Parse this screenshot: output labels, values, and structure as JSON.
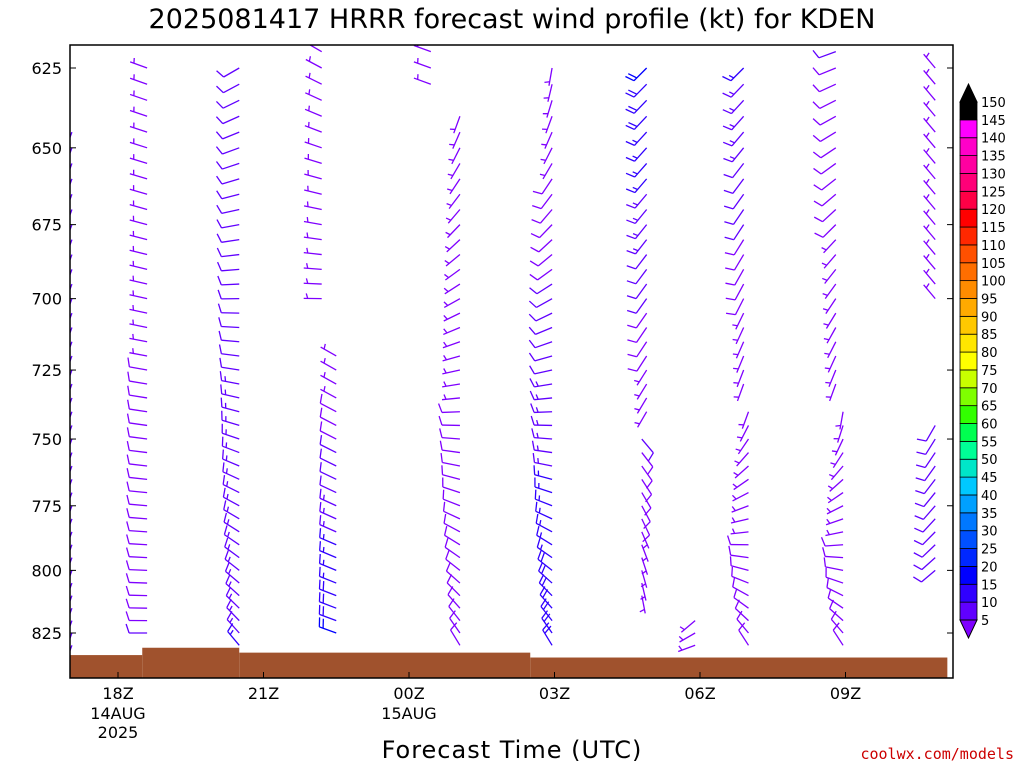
{
  "chart_data": {
    "type": "wind-barb-profile",
    "title": "2025081417 HRRR forecast wind profile (kt) for KDEN",
    "xlabel": "Forecast Time (UTC)",
    "ylabel": "",
    "credit": "coolwx.com/models",
    "y_scale": "log",
    "ylim": [
      615,
      840
    ],
    "y_ticks": [
      625,
      650,
      675,
      700,
      725,
      750,
      775,
      800,
      825
    ],
    "y_tick_labels": [
      "625",
      "650",
      "675",
      "700",
      "725",
      "750",
      "775",
      "800",
      "825"
    ],
    "xlim_hours": [
      -1,
      17.1
    ],
    "x_ticks": [
      {
        "hour": 0,
        "label": "18Z",
        "sub1": "14AUG",
        "sub2": "2025"
      },
      {
        "hour": 3,
        "label": "21Z",
        "sub1": "",
        "sub2": ""
      },
      {
        "hour": 6,
        "label": "00Z",
        "sub1": "15AUG",
        "sub2": ""
      },
      {
        "hour": 9,
        "label": "03Z",
        "sub1": "",
        "sub2": ""
      },
      {
        "hour": 12,
        "label": "06Z",
        "sub1": "",
        "sub2": ""
      },
      {
        "hour": 15,
        "label": "09Z",
        "sub1": "",
        "sub2": ""
      }
    ],
    "ground": {
      "color": "#a0522d",
      "segments": [
        {
          "h0": -1,
          "h1": 0.5,
          "p": 834
        },
        {
          "h0": 0.5,
          "h1": 2.5,
          "p": 831
        },
        {
          "h0": 2.5,
          "h1": 8.5,
          "p": 833
        },
        {
          "h0": 8.5,
          "h1": 17.1,
          "p": 835
        }
      ]
    },
    "colorbar": {
      "levels": [
        5,
        10,
        15,
        20,
        25,
        30,
        35,
        40,
        45,
        50,
        55,
        60,
        65,
        70,
        75,
        80,
        85,
        90,
        95,
        100,
        105,
        110,
        115,
        120,
        125,
        130,
        135,
        140,
        145,
        150
      ],
      "colors": [
        "#7f00ff",
        "#6000ff",
        "#3000ff",
        "#0000ff",
        "#0028ff",
        "#0050ff",
        "#0078ff",
        "#00a0ff",
        "#00c8ff",
        "#00e6c8",
        "#00ff96",
        "#00ff50",
        "#32ff00",
        "#7fff00",
        "#c8ff00",
        "#ffff00",
        "#ffe600",
        "#ffc800",
        "#ffaa00",
        "#ff8c00",
        "#ff6e00",
        "#ff5000",
        "#ff2800",
        "#ff0000",
        "#ff0046",
        "#ff0078",
        "#ff00a0",
        "#ff00c8",
        "#ff00ff",
        "#000000"
      ]
    },
    "barb_levels_hpa": [
      620,
      625,
      630,
      635,
      640,
      645,
      650,
      655,
      660,
      665,
      670,
      675,
      680,
      685,
      690,
      695,
      700,
      705,
      710,
      715,
      720,
      725,
      730,
      735,
      740,
      745,
      750,
      755,
      760,
      765,
      770,
      775,
      780,
      785,
      790,
      795,
      800,
      805,
      810,
      815,
      820,
      825,
      830
    ],
    "series": [
      {
        "hour": -0.95,
        "top_hpa": 645,
        "bottom_hpa": 830,
        "dir_top": 200,
        "dir_bottom": 200,
        "spd_top": 10,
        "spd_bottom": 10
      },
      {
        "hour": 0.6,
        "top_hpa": 625,
        "bottom_hpa": 825,
        "dir_top": 290,
        "dir_bottom": 270,
        "spd_top": 5,
        "spd_bottom": 10
      },
      {
        "hour": 2.5,
        "top_hpa": 625,
        "bottom_hpa": 830,
        "dir_top": 240,
        "dir_bottom": 320,
        "spd_top": 10,
        "spd_bottom": 15
      },
      {
        "hour": 4.2,
        "top_hpa": 620,
        "bottom_hpa": 702,
        "dir_top": 300,
        "dir_bottom": 270,
        "spd_top": 5,
        "spd_bottom": 5
      },
      {
        "hour": 4.5,
        "top_hpa": 718,
        "bottom_hpa": 825,
        "dir_top": 300,
        "dir_bottom": 290,
        "spd_top": 5,
        "spd_bottom": 20
      },
      {
        "hour": 6.45,
        "top_hpa": 620,
        "bottom_hpa": 630,
        "dir_top": 290,
        "dir_bottom": 290,
        "spd_top": 5,
        "spd_bottom": 5
      },
      {
        "hour": 7.05,
        "top_hpa": 640,
        "bottom_hpa": 832,
        "dir_top": 200,
        "dir_bottom": 330,
        "spd_top": 5,
        "spd_bottom": 10
      },
      {
        "hour": 8.95,
        "top_hpa": 625,
        "bottom_hpa": 832,
        "dir_top": 190,
        "dir_bottom": 330,
        "spd_top": 5,
        "spd_bottom": 20
      },
      {
        "hour": 10.9,
        "top_hpa": 625,
        "bottom_hpa": 742,
        "dir_top": 225,
        "dir_bottom": 210,
        "spd_top": 20,
        "spd_bottom": 5
      },
      {
        "hour": 10.8,
        "top_hpa": 750,
        "bottom_hpa": 812,
        "dir_top": 140,
        "dir_bottom": 170,
        "spd_top": 10,
        "spd_bottom": 5
      },
      {
        "hour": 11.9,
        "top_hpa": 820,
        "bottom_hpa": 830,
        "dir_top": 230,
        "dir_bottom": 250,
        "spd_top": 5,
        "spd_bottom": 5
      },
      {
        "hour": 12.9,
        "top_hpa": 625,
        "bottom_hpa": 730,
        "dir_top": 225,
        "dir_bottom": 200,
        "spd_top": 15,
        "spd_bottom": 5
      },
      {
        "hour": 13.0,
        "top_hpa": 740,
        "bottom_hpa": 832,
        "dir_top": 200,
        "dir_bottom": 330,
        "spd_top": 5,
        "spd_bottom": 10
      },
      {
        "hour": 14.8,
        "top_hpa": 620,
        "bottom_hpa": 730,
        "dir_top": 250,
        "dir_bottom": 200,
        "spd_top": 10,
        "spd_bottom": 5
      },
      {
        "hour": 14.95,
        "top_hpa": 740,
        "bottom_hpa": 832,
        "dir_top": 190,
        "dir_bottom": 330,
        "spd_top": 5,
        "spd_bottom": 10
      },
      {
        "hour": 16.85,
        "top_hpa": 625,
        "bottom_hpa": 702,
        "dir_top": 320,
        "dir_bottom": 320,
        "spd_top": 5,
        "spd_bottom": 5
      },
      {
        "hour": 16.85,
        "top_hpa": 745,
        "bottom_hpa": 800,
        "dir_top": 210,
        "dir_bottom": 230,
        "spd_top": 10,
        "spd_bottom": 10
      }
    ]
  }
}
